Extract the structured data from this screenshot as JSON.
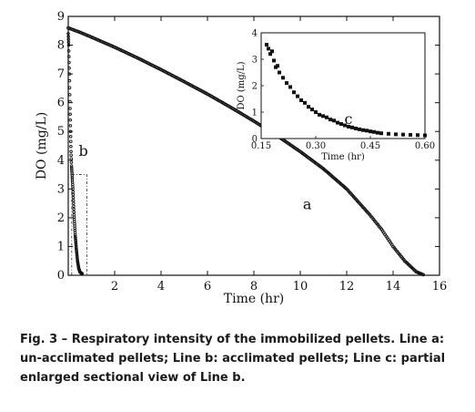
{
  "chart_data": [
    {
      "type": "scatter",
      "xlabel": "Time (hr)",
      "ylabel": "DO (mg/L)",
      "xlim": [
        0,
        16
      ],
      "ylim": [
        0,
        9
      ],
      "x_ticks": [
        "2",
        "4",
        "6",
        "8",
        "10",
        "12",
        "14",
        "16"
      ],
      "y_ticks": [
        "0",
        "1",
        "2",
        "3",
        "4",
        "5",
        "6",
        "7",
        "8",
        "9"
      ],
      "series": [
        {
          "name": "a",
          "x": [
            0.0,
            0.5,
            1,
            2,
            3,
            4,
            5,
            6,
            7,
            8,
            9,
            10,
            11,
            12,
            13,
            13.5,
            14,
            14.5,
            15,
            15.3
          ],
          "y": [
            8.6,
            8.45,
            8.28,
            7.93,
            7.55,
            7.15,
            6.73,
            6.3,
            5.84,
            5.36,
            4.85,
            4.3,
            3.7,
            3.0,
            2.1,
            1.6,
            1.0,
            0.5,
            0.12,
            0.02
          ]
        },
        {
          "name": "b",
          "x": [
            0.0,
            0.02,
            0.05,
            0.08,
            0.1,
            0.12,
            0.14,
            0.16,
            0.2,
            0.25,
            0.3,
            0.35,
            0.4,
            0.45,
            0.5,
            0.6
          ],
          "y": [
            8.4,
            8.0,
            7.0,
            5.8,
            5.0,
            4.3,
            3.8,
            3.55,
            3.0,
            2.1,
            1.4,
            0.9,
            0.5,
            0.25,
            0.12,
            0.05
          ]
        }
      ],
      "annotations": [
        {
          "text": "a",
          "x": 10.3,
          "y": 2.3
        },
        {
          "text": "b",
          "x": 0.65,
          "y": 4.15
        }
      ],
      "zoom_box": {
        "x": [
          0.15,
          0.8
        ],
        "y": [
          0,
          3.5
        ]
      }
    },
    {
      "type": "scatter",
      "xlabel": "Time (hr)",
      "ylabel": "DO (mg/L)",
      "xlim": [
        0.15,
        0.6
      ],
      "ylim": [
        0,
        4
      ],
      "x_ticks": [
        "0.15",
        "0.30",
        "0.45",
        "0.60"
      ],
      "y_ticks": [
        "0",
        "1",
        "2",
        "3",
        "4"
      ],
      "series": [
        {
          "name": "c",
          "x": [
            0.165,
            0.17,
            0.175,
            0.18,
            0.185,
            0.19,
            0.195,
            0.2,
            0.21,
            0.22,
            0.23,
            0.24,
            0.25,
            0.26,
            0.27,
            0.28,
            0.29,
            0.3,
            0.31,
            0.32,
            0.33,
            0.34,
            0.35,
            0.36,
            0.37,
            0.38,
            0.39,
            0.4,
            0.41,
            0.42,
            0.43,
            0.44,
            0.45,
            0.46,
            0.47,
            0.48,
            0.5,
            0.52,
            0.54,
            0.56,
            0.58,
            0.6
          ],
          "y": [
            3.55,
            3.4,
            3.2,
            3.3,
            2.95,
            2.7,
            2.75,
            2.5,
            2.3,
            2.1,
            1.95,
            1.75,
            1.6,
            1.45,
            1.35,
            1.2,
            1.1,
            1.0,
            0.9,
            0.85,
            0.8,
            0.72,
            0.68,
            0.6,
            0.55,
            0.5,
            0.45,
            0.42,
            0.38,
            0.35,
            0.32,
            0.3,
            0.27,
            0.25,
            0.22,
            0.2,
            0.18,
            0.16,
            0.15,
            0.14,
            0.13,
            0.12
          ]
        }
      ],
      "annotations": [
        {
          "text": "c",
          "x": 0.39,
          "y": 0.55
        }
      ]
    }
  ],
  "caption": "Fig. 3 – Respiratory intensity of the immobilized pellets. Line a: un-acclimated pellets; Line b: acclimated pellets; Line c: partial enlarged sectional view of Line b."
}
